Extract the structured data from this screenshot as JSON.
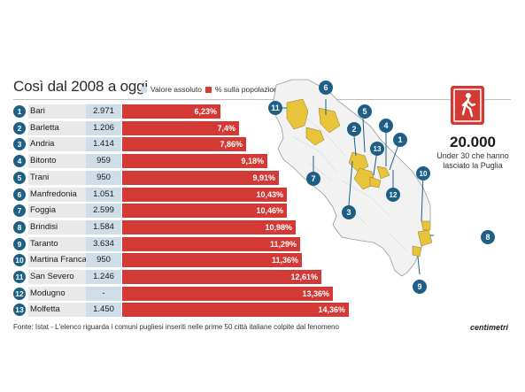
{
  "title": "Così dal 2008 a oggi",
  "legend": {
    "abs_label": "Valore assoluto",
    "pct_label": "% sulla popolazione",
    "abs_color": "#cfdde8",
    "pct_color": "#d33a36"
  },
  "chart_data": {
    "type": "bar",
    "categories": [
      "Bari",
      "Barletta",
      "Andria",
      "Bitonto",
      "Trani",
      "Manfredonia",
      "Foggia",
      "Brindisi",
      "Taranto",
      "Martina Franca",
      "San Severo",
      "Modugno",
      "Molfetta"
    ],
    "ranks": [
      "1",
      "2",
      "3",
      "4",
      "5",
      "6",
      "7",
      "8",
      "9",
      "10",
      "11",
      "12",
      "13"
    ],
    "absolute_values": [
      "2.971",
      "1.206",
      "1.414",
      "959",
      "950",
      "1.051",
      "2.599",
      "1.584",
      "3.634",
      "950",
      "1.246",
      "-",
      "1.450"
    ],
    "series": [
      {
        "name": "% sulla popolazione",
        "values": [
          6.23,
          7.4,
          7.86,
          9.18,
          9.91,
          10.43,
          10.46,
          10.98,
          11.29,
          11.36,
          12.61,
          13.36,
          14.36
        ]
      }
    ],
    "value_labels": [
      "6,23%",
      "7,4%",
      "7,86%",
      "9,18%",
      "9,91%",
      "10,43%",
      "10,46%",
      "10,98%",
      "11,29%",
      "11,36%",
      "12,61%",
      "13,36%",
      "14,36%"
    ]
  },
  "stat": {
    "number": "20.000",
    "caption_line1": "Under 30 che hanno",
    "caption_line2": "lasciato la Puglia",
    "icon": "walking-person-icon"
  },
  "map": {
    "markers": [
      "11",
      "6",
      "5",
      "2",
      "4",
      "13",
      "1",
      "7",
      "12",
      "3",
      "10",
      "8",
      "9"
    ],
    "highlight_color": "#e8c43a",
    "marker_color": "#1e5f86"
  },
  "source": "Fonte: Istat - L'elenco riguarda i comuni pugliesi inseriti nelle prime 50 città italiane colpite dal fenomeno",
  "brand": "centimetri"
}
